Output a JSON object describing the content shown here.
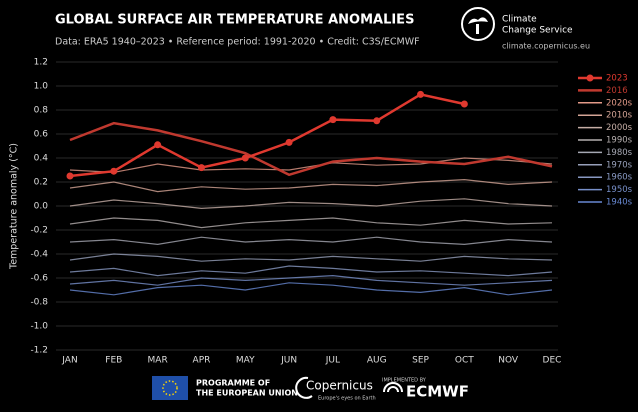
{
  "chart_data": {
    "type": "line",
    "title": "GLOBAL SURFACE AIR TEMPERATURE ANOMALIES",
    "subtitle": "Data: ERA5 1940–2023 • Reference period: 1991-2020 • Credit: C3S/ECMWF",
    "y_label": "Temperature anomaly (°C)",
    "categories": [
      "JAN",
      "FEB",
      "MAR",
      "APR",
      "MAY",
      "JUN",
      "JUL",
      "AUG",
      "SEP",
      "OCT",
      "NOV",
      "DEC"
    ],
    "ylim": [
      -1.2,
      1.2
    ],
    "yticks": [
      -1.2,
      {
        "value": -1,
        "label": "-1.0"
      },
      -0.8,
      -0.6,
      -0.4,
      -0.2,
      {
        "value": 0,
        "label": "0.0"
      },
      0.2,
      0.4,
      0.6,
      0.8,
      {
        "value": 1,
        "label": "1.0"
      },
      1.2
    ],
    "grid": true,
    "legend": "right",
    "series": [
      {
        "name": "2023",
        "color": "#e0392f",
        "values": [
          0.25,
          0.29,
          0.51,
          0.32,
          0.4,
          0.53,
          0.72,
          0.71,
          0.93,
          0.85,
          null,
          null
        ]
      },
      {
        "name": "2016",
        "color": "#c0392f",
        "values": [
          0.55,
          0.69,
          0.63,
          0.54,
          0.44,
          0.26,
          0.37,
          0.4,
          0.37,
          0.35,
          0.41,
          0.33
        ]
      },
      {
        "name": "2020s",
        "color": "#e39a88",
        "values": [
          0.3,
          0.28,
          0.35,
          0.3,
          0.31,
          0.3,
          0.36,
          0.34,
          0.35,
          0.4,
          0.38,
          0.35
        ]
      },
      {
        "name": "2010s",
        "color": "#d4a596",
        "values": [
          0.15,
          0.2,
          0.12,
          0.16,
          0.14,
          0.15,
          0.18,
          0.17,
          0.2,
          0.22,
          0.18,
          0.2
        ]
      },
      {
        "name": "2000s",
        "color": "#c6aea6",
        "values": [
          0.0,
          0.05,
          0.02,
          -0.02,
          0.0,
          0.03,
          0.02,
          0.0,
          0.04,
          0.06,
          0.02,
          0.0
        ]
      },
      {
        "name": "1990s",
        "color": "#b6afaf",
        "values": [
          -0.15,
          -0.1,
          -0.12,
          -0.18,
          -0.14,
          -0.12,
          -0.1,
          -0.14,
          -0.16,
          -0.12,
          -0.15,
          -0.14
        ]
      },
      {
        "name": "1980s",
        "color": "#a6a8b3",
        "values": [
          -0.3,
          -0.28,
          -0.32,
          -0.26,
          -0.3,
          -0.28,
          -0.3,
          -0.26,
          -0.3,
          -0.32,
          -0.28,
          -0.3
        ]
      },
      {
        "name": "1970s",
        "color": "#97a0ba",
        "values": [
          -0.45,
          -0.4,
          -0.42,
          -0.46,
          -0.44,
          -0.45,
          -0.42,
          -0.44,
          -0.46,
          -0.42,
          -0.44,
          -0.45
        ]
      },
      {
        "name": "1960s",
        "color": "#8898c2",
        "values": [
          -0.55,
          -0.52,
          -0.58,
          -0.54,
          -0.56,
          -0.5,
          -0.52,
          -0.55,
          -0.54,
          -0.56,
          -0.58,
          -0.55
        ]
      },
      {
        "name": "1950s",
        "color": "#7890ca",
        "values": [
          -0.65,
          -0.62,
          -0.66,
          -0.6,
          -0.62,
          -0.6,
          -0.58,
          -0.62,
          -0.64,
          -0.66,
          -0.64,
          -0.62
        ]
      },
      {
        "name": "1940s",
        "color": "#6888d2",
        "values": [
          -0.7,
          -0.74,
          -0.68,
          -0.66,
          -0.7,
          -0.64,
          -0.66,
          -0.7,
          -0.72,
          -0.68,
          -0.74,
          -0.7
        ]
      }
    ]
  },
  "logo": {
    "name_line1": "Climate",
    "name_line2": "Change Service",
    "url": "climate.copernicus.eu"
  },
  "footer": {
    "eu_line1": "PROGRAMME OF",
    "eu_line2": "THE EUROPEAN UNION",
    "copernicus": "Copernicus",
    "copernicus_tagline": "Europe's eyes on Earth",
    "implemented": "IMPLEMENTED BY",
    "ecmwf": "ECMWF"
  }
}
